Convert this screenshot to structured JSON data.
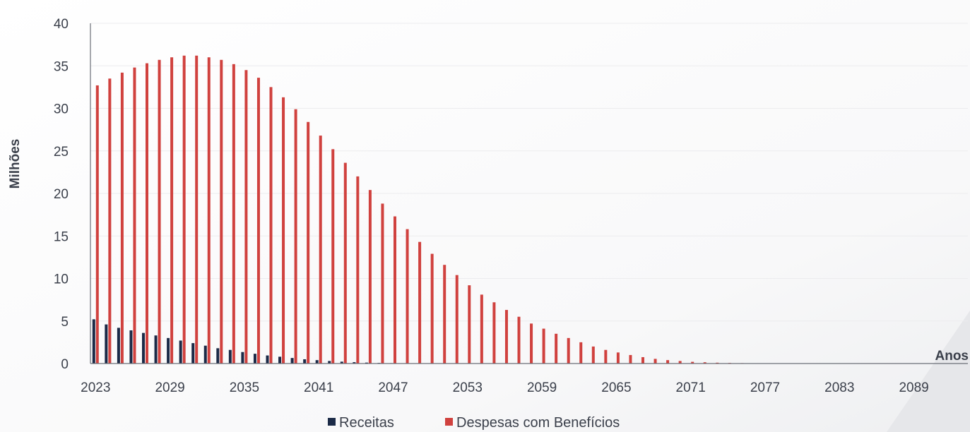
{
  "chart_data": {
    "type": "bar",
    "ylabel": "Milhões",
    "xlabel": "Anos",
    "ylim": [
      0,
      40
    ],
    "y_ticks": [
      "0",
      "5",
      "10",
      "15",
      "20",
      "25",
      "30",
      "35",
      "40"
    ],
    "x_tick_labels": [
      "2023",
      "2029",
      "2035",
      "2041",
      "2047",
      "2053",
      "2059",
      "2065",
      "2071",
      "2077",
      "2083",
      "2089"
    ],
    "x_start_year": 2023,
    "x_end_year": 2093,
    "grid": true,
    "legend_position": "bottom",
    "colors": {
      "receitas": "#1b2a47",
      "despesas": "#d0413e"
    },
    "series": [
      {
        "name": "Receitas",
        "values": [
          5.2,
          4.6,
          4.2,
          3.9,
          3.6,
          3.3,
          3.0,
          2.7,
          2.4,
          2.1,
          1.8,
          1.6,
          1.35,
          1.15,
          0.95,
          0.8,
          0.65,
          0.5,
          0.4,
          0.3,
          0.22,
          0.16,
          0.11,
          0.07,
          0.05,
          0.03,
          0.02,
          0.01,
          0.01,
          0.01,
          0,
          0,
          0,
          0,
          0,
          0,
          0,
          0,
          0,
          0,
          0,
          0,
          0,
          0,
          0,
          0,
          0,
          0,
          0,
          0,
          0,
          0,
          0,
          0,
          0,
          0,
          0,
          0,
          0,
          0,
          0,
          0,
          0,
          0,
          0,
          0,
          0,
          0,
          0,
          0
        ]
      },
      {
        "name": "Despesas com Benefícios",
        "values": [
          32.7,
          33.5,
          34.2,
          34.8,
          35.3,
          35.7,
          36.0,
          36.2,
          36.2,
          36.0,
          35.7,
          35.2,
          34.5,
          33.6,
          32.5,
          31.3,
          29.9,
          28.4,
          26.8,
          25.2,
          23.6,
          22.0,
          20.4,
          18.8,
          17.3,
          15.8,
          14.3,
          12.9,
          11.6,
          10.4,
          9.2,
          8.1,
          7.2,
          6.3,
          5.5,
          4.7,
          4.1,
          3.5,
          3.0,
          2.5,
          2.0,
          1.6,
          1.3,
          1.0,
          0.75,
          0.55,
          0.4,
          0.3,
          0.2,
          0.15,
          0.1,
          0.07,
          0.05,
          0.04,
          0.03,
          0.02,
          0.02,
          0.01,
          0.01,
          0.01,
          0.01,
          0.01,
          0.01,
          0.01,
          0.01,
          0.01,
          0.01,
          0.01,
          0.01,
          0.01
        ]
      }
    ]
  }
}
